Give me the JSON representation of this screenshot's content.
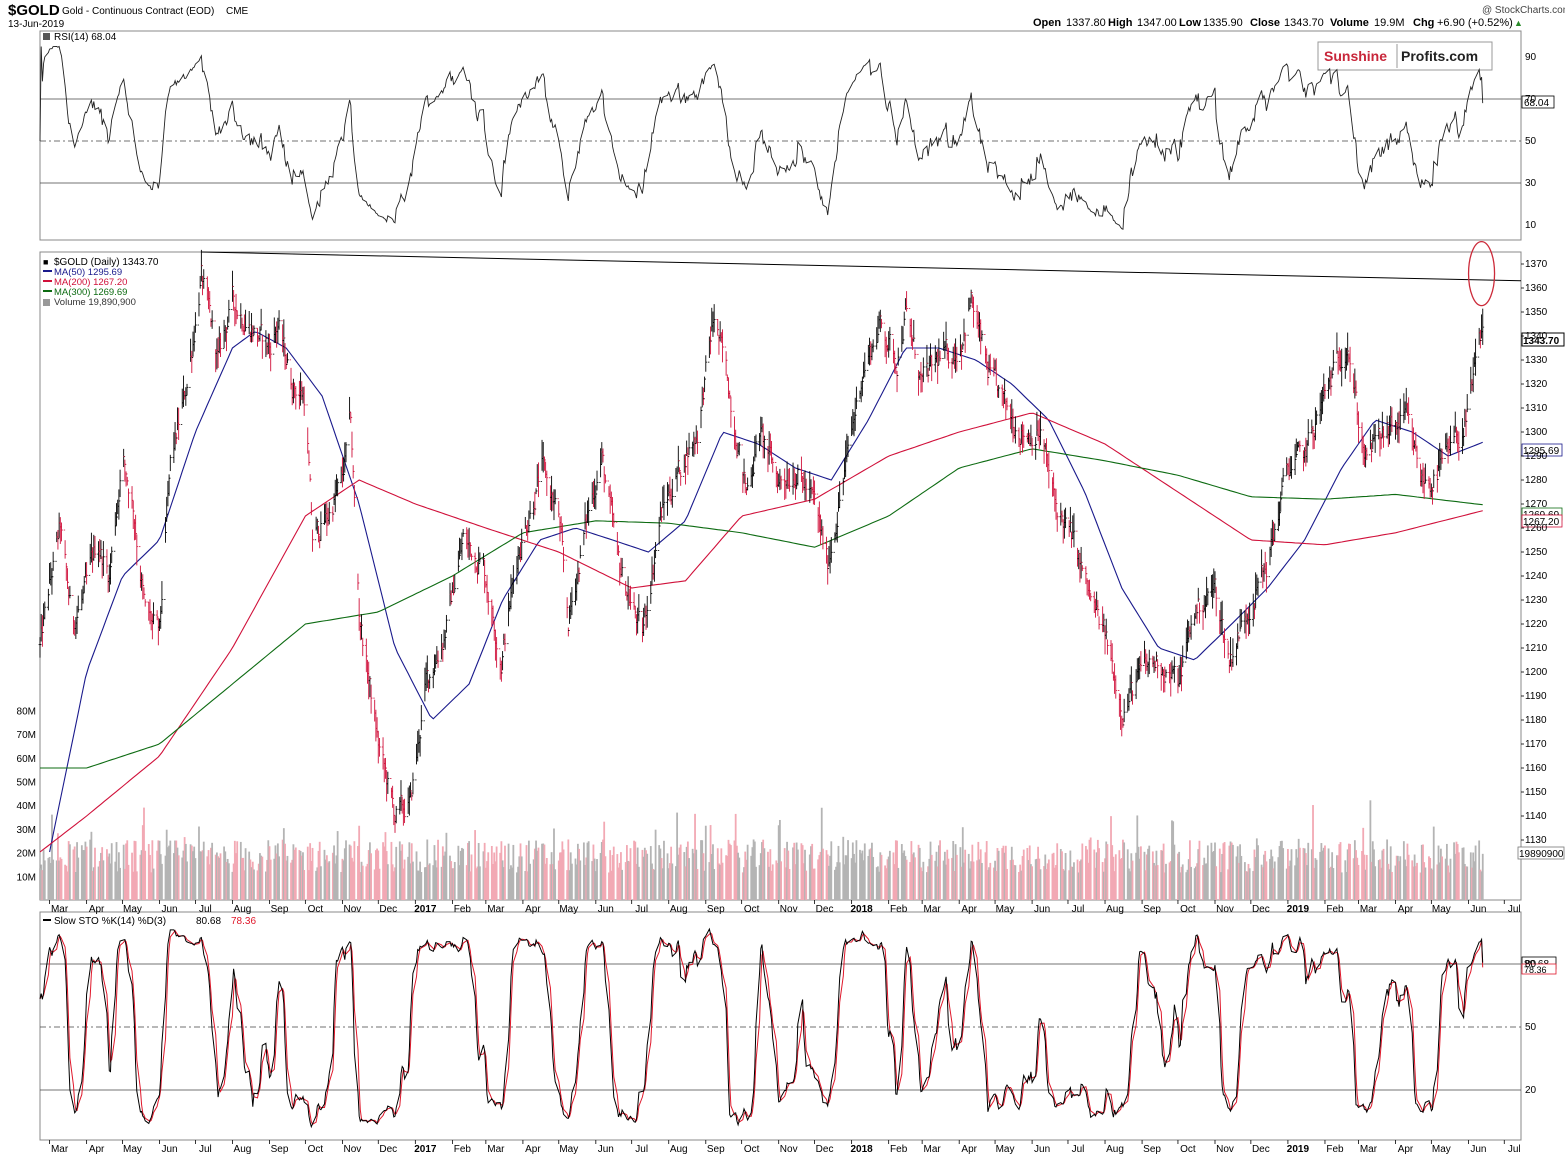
{
  "header": {
    "symbol": "$GOLD",
    "description": "Gold - Continuous Contract (EOD)",
    "exchange": "CME",
    "date": "13-Jun-2019",
    "credit": "@ StockCharts.com",
    "quote": {
      "open_label": "Open",
      "open": "1337.80",
      "high_label": "High",
      "high": "1347.00",
      "low_label": "Low",
      "low": "1335.90",
      "close_label": "Close",
      "close": "1343.70",
      "volume_label": "Volume",
      "volume": "19.9M",
      "chg_label": "Chg",
      "chg": "+6.90 (+0.52%)",
      "arrow": "▲"
    }
  },
  "watermark": {
    "part1": "Sunshine",
    "part2": "Profits.com"
  },
  "colors": {
    "price": "#000000",
    "ma50": "#1a1a8c",
    "ma200": "#d0103a",
    "ma300": "#0d6b12",
    "vol_up": "#b4b4b4",
    "vol_down": "#f2a9b4",
    "stoch_d": "#e0182b",
    "rsi_over": "#3c7a3c",
    "rsi_under": "#8a6a6a",
    "annotation": "#cc2b3a"
  },
  "rsi": {
    "label": "RSI(14) 68.04",
    "value_badge": "68.04",
    "ticks": [
      "90",
      "70",
      "50",
      "30",
      "10"
    ],
    "levels": [
      70,
      50,
      30
    ]
  },
  "price_panel": {
    "legend": {
      "main": "$GOLD (Daily) 1343.70",
      "ma50": "MA(50) 1295.69",
      "ma200": "MA(200) 1267.20",
      "ma300": "MA(300) 1269.69",
      "volume": "Volume 19,890,900"
    },
    "price_ticks": [
      "1370",
      "1360",
      "1350",
      "1340",
      "1330",
      "1320",
      "1310",
      "1300",
      "1290",
      "1280",
      "1270",
      "1260",
      "1250",
      "1240",
      "1230",
      "1220",
      "1210",
      "1200",
      "1190",
      "1180",
      "1170",
      "1160",
      "1150",
      "1140",
      "1130"
    ],
    "volume_ticks": [
      "80M",
      "70M",
      "60M",
      "50M",
      "40M",
      "30M",
      "20M",
      "10M"
    ],
    "badges": {
      "close": "1343.70",
      "ma50": "1295.69",
      "ma300": "1269.69",
      "ma200": "1267.20",
      "volume": "19890900"
    }
  },
  "stoch": {
    "label_prefix": "Slow STO %K(14) %D(3)",
    "k_value": "80.68",
    "d_value": "78.36",
    "ticks": [
      "80",
      "50",
      "20"
    ],
    "badge_k": "80.68",
    "badge_d": "78.36"
  },
  "x_axis": {
    "months": [
      {
        "label": "Mar",
        "bold": false
      },
      {
        "label": "Apr",
        "bold": false
      },
      {
        "label": "May",
        "bold": false
      },
      {
        "label": "Jun",
        "bold": false
      },
      {
        "label": "Jul",
        "bold": false
      },
      {
        "label": "Aug",
        "bold": false
      },
      {
        "label": "Sep",
        "bold": false
      },
      {
        "label": "Oct",
        "bold": false
      },
      {
        "label": "Nov",
        "bold": false
      },
      {
        "label": "Dec",
        "bold": false
      },
      {
        "label": "2017",
        "bold": true
      },
      {
        "label": "Feb",
        "bold": false
      },
      {
        "label": "Mar",
        "bold": false
      },
      {
        "label": "Apr",
        "bold": false
      },
      {
        "label": "May",
        "bold": false
      },
      {
        "label": "Jun",
        "bold": false
      },
      {
        "label": "Jul",
        "bold": false
      },
      {
        "label": "Aug",
        "bold": false
      },
      {
        "label": "Sep",
        "bold": false
      },
      {
        "label": "Oct",
        "bold": false
      },
      {
        "label": "Nov",
        "bold": false
      },
      {
        "label": "Dec",
        "bold": false
      },
      {
        "label": "2018",
        "bold": true
      },
      {
        "label": "Feb",
        "bold": false
      },
      {
        "label": "Mar",
        "bold": false
      },
      {
        "label": "Apr",
        "bold": false
      },
      {
        "label": "May",
        "bold": false
      },
      {
        "label": "Jun",
        "bold": false
      },
      {
        "label": "Jul",
        "bold": false
      },
      {
        "label": "Aug",
        "bold": false
      },
      {
        "label": "Sep",
        "bold": false
      },
      {
        "label": "Oct",
        "bold": false
      },
      {
        "label": "Nov",
        "bold": false
      },
      {
        "label": "Dec",
        "bold": false
      },
      {
        "label": "2019",
        "bold": true
      },
      {
        "label": "Feb",
        "bold": false
      },
      {
        "label": "Mar",
        "bold": false
      },
      {
        "label": "Apr",
        "bold": false
      },
      {
        "label": "May",
        "bold": false
      },
      {
        "label": "Jun",
        "bold": false
      },
      {
        "label": "Jul",
        "bold": false
      }
    ]
  },
  "chart_data": {
    "type": "line",
    "title": "$GOLD Gold - Continuous Contract (EOD) CME",
    "x_range": [
      "2016-02-22",
      "2019-07-15"
    ],
    "ylim": [
      1125,
      1378
    ],
    "grid": false,
    "legend_placement": "top-left",
    "price_series": {
      "name": "$GOLD (Daily)",
      "dates": [
        "2016-02-22",
        "2016-03-01",
        "2016-03-10",
        "2016-03-20",
        "2016-04-01",
        "2016-04-10",
        "2016-04-20",
        "2016-05-01",
        "2016-05-10",
        "2016-05-20",
        "2016-06-01",
        "2016-06-10",
        "2016-06-24",
        "2016-07-06",
        "2016-07-20",
        "2016-08-01",
        "2016-08-15",
        "2016-09-01",
        "2016-09-08",
        "2016-09-20",
        "2016-10-01",
        "2016-10-07",
        "2016-10-20",
        "2016-11-01",
        "2016-11-08",
        "2016-11-15",
        "2016-12-01",
        "2016-12-15",
        "2016-12-28",
        "2017-01-10",
        "2017-01-25",
        "2017-02-10",
        "2017-02-27",
        "2017-03-14",
        "2017-03-28",
        "2017-04-17",
        "2017-05-01",
        "2017-05-09",
        "2017-05-25",
        "2017-06-06",
        "2017-06-20",
        "2017-07-10",
        "2017-07-25",
        "2017-08-10",
        "2017-08-25",
        "2017-09-08",
        "2017-09-20",
        "2017-10-05",
        "2017-10-16",
        "2017-11-01",
        "2017-11-15",
        "2017-12-01",
        "2017-12-12",
        "2017-12-25",
        "2018-01-10",
        "2018-01-25",
        "2018-02-08",
        "2018-02-15",
        "2018-03-01",
        "2018-03-15",
        "2018-04-01",
        "2018-04-11",
        "2018-04-25",
        "2018-05-10",
        "2018-05-25",
        "2018-06-08",
        "2018-06-20",
        "2018-07-05",
        "2018-07-20",
        "2018-08-01",
        "2018-08-16",
        "2018-09-01",
        "2018-09-15",
        "2018-10-01",
        "2018-10-15",
        "2018-11-01",
        "2018-11-13",
        "2018-12-01",
        "2018-12-15",
        "2019-01-01",
        "2019-01-15",
        "2019-02-01",
        "2019-02-20",
        "2019-03-01",
        "2019-03-07",
        "2019-03-25",
        "2019-04-10",
        "2019-04-23",
        "2019-05-02",
        "2019-05-15",
        "2019-05-31",
        "2019-06-10",
        "2019-06-13"
      ],
      "values": [
        1210,
        1235,
        1260,
        1220,
        1235,
        1255,
        1240,
        1290,
        1270,
        1225,
        1215,
        1285,
        1320,
        1365,
        1330,
        1355,
        1345,
        1335,
        1345,
        1320,
        1315,
        1255,
        1265,
        1280,
        1305,
        1225,
        1170,
        1140,
        1145,
        1195,
        1215,
        1255,
        1245,
        1205,
        1250,
        1285,
        1265,
        1220,
        1265,
        1290,
        1245,
        1215,
        1265,
        1285,
        1300,
        1348,
        1320,
        1275,
        1300,
        1280,
        1285,
        1270,
        1245,
        1280,
        1325,
        1345,
        1330,
        1350,
        1320,
        1330,
        1335,
        1355,
        1325,
        1310,
        1300,
        1300,
        1270,
        1255,
        1230,
        1215,
        1185,
        1200,
        1205,
        1195,
        1225,
        1235,
        1205,
        1230,
        1245,
        1285,
        1290,
        1315,
        1340,
        1305,
        1290,
        1300,
        1305,
        1280,
        1280,
        1290,
        1305,
        1335,
        1343.7
      ]
    },
    "moving_averages": [
      {
        "name": "MA(50)",
        "last": 1295.69,
        "dates": [
          "2016-03-01",
          "2016-04-01",
          "2016-05-01",
          "2016-06-01",
          "2016-07-01",
          "2016-08-01",
          "2016-08-20",
          "2016-09-15",
          "2016-10-15",
          "2016-11-15",
          "2016-12-15",
          "2017-01-15",
          "2017-02-15",
          "2017-03-15",
          "2017-04-15",
          "2017-05-15",
          "2017-06-15",
          "2017-07-15",
          "2017-08-15",
          "2017-09-15",
          "2017-10-15",
          "2017-11-15",
          "2017-12-15",
          "2018-01-15",
          "2018-02-15",
          "2018-03-15",
          "2018-04-15",
          "2018-05-15",
          "2018-06-15",
          "2018-07-15",
          "2018-08-15",
          "2018-09-15",
          "2018-10-15",
          "2018-11-15",
          "2018-12-15",
          "2019-01-15",
          "2019-02-15",
          "2019-03-15",
          "2019-04-15",
          "2019-05-15",
          "2019-06-13"
        ],
        "values": [
          1125,
          1200,
          1240,
          1255,
          1300,
          1335,
          1342,
          1335,
          1315,
          1270,
          1210,
          1180,
          1195,
          1230,
          1255,
          1260,
          1255,
          1250,
          1263,
          1300,
          1295,
          1285,
          1280,
          1305,
          1335,
          1335,
          1330,
          1320,
          1305,
          1275,
          1235,
          1210,
          1205,
          1220,
          1235,
          1255,
          1285,
          1305,
          1300,
          1290,
          1295.69
        ]
      },
      {
        "name": "MA(200)",
        "last": 1267.2,
        "dates": [
          "2016-02-22",
          "2016-04-01",
          "2016-06-01",
          "2016-08-01",
          "2016-10-01",
          "2016-11-15",
          "2017-01-01",
          "2017-03-01",
          "2017-05-01",
          "2017-07-01",
          "2017-08-15",
          "2017-10-01",
          "2017-12-01",
          "2018-02-01",
          "2018-04-01",
          "2018-06-01",
          "2018-08-01",
          "2018-10-01",
          "2018-12-01",
          "2019-02-01",
          "2019-04-01",
          "2019-06-13"
        ],
        "values": [
          1125,
          1140,
          1165,
          1210,
          1265,
          1280,
          1270,
          1260,
          1250,
          1235,
          1238,
          1265,
          1272,
          1290,
          1300,
          1308,
          1295,
          1275,
          1255,
          1253,
          1258,
          1267.2
        ]
      },
      {
        "name": "MA(300)",
        "last": 1269.69,
        "dates": [
          "2016-02-22",
          "2016-04-01",
          "2016-06-01",
          "2016-08-01",
          "2016-10-01",
          "2016-12-01",
          "2017-02-01",
          "2017-04-01",
          "2017-06-01",
          "2017-08-01",
          "2017-10-01",
          "2017-12-01",
          "2018-02-01",
          "2018-04-01",
          "2018-06-01",
          "2018-08-01",
          "2018-10-01",
          "2018-12-01",
          "2019-02-01",
          "2019-04-01",
          "2019-06-13"
        ],
        "values": [
          1160,
          1160,
          1170,
          1195,
          1220,
          1225,
          1240,
          1258,
          1263,
          1262,
          1258,
          1252,
          1265,
          1285,
          1293,
          1288,
          1282,
          1273,
          1272,
          1274,
          1269.69
        ]
      }
    ],
    "trendline": {
      "from": {
        "date": "2016-07-06",
        "value": 1375
      },
      "to": {
        "date": "2019-07-15",
        "value": 1363
      }
    },
    "annotation": {
      "type": "ellipse",
      "date": "2019-06-12",
      "value": 1366
    },
    "volume_ylim": [
      0,
      85
    ],
    "rsi_series": {
      "name": "RSI(14)",
      "last": 68.04
    },
    "stoch_series": {
      "k_name": "%K(14)",
      "d_name": "%D(3)",
      "k_last": 80.68,
      "d_last": 78.36
    }
  }
}
